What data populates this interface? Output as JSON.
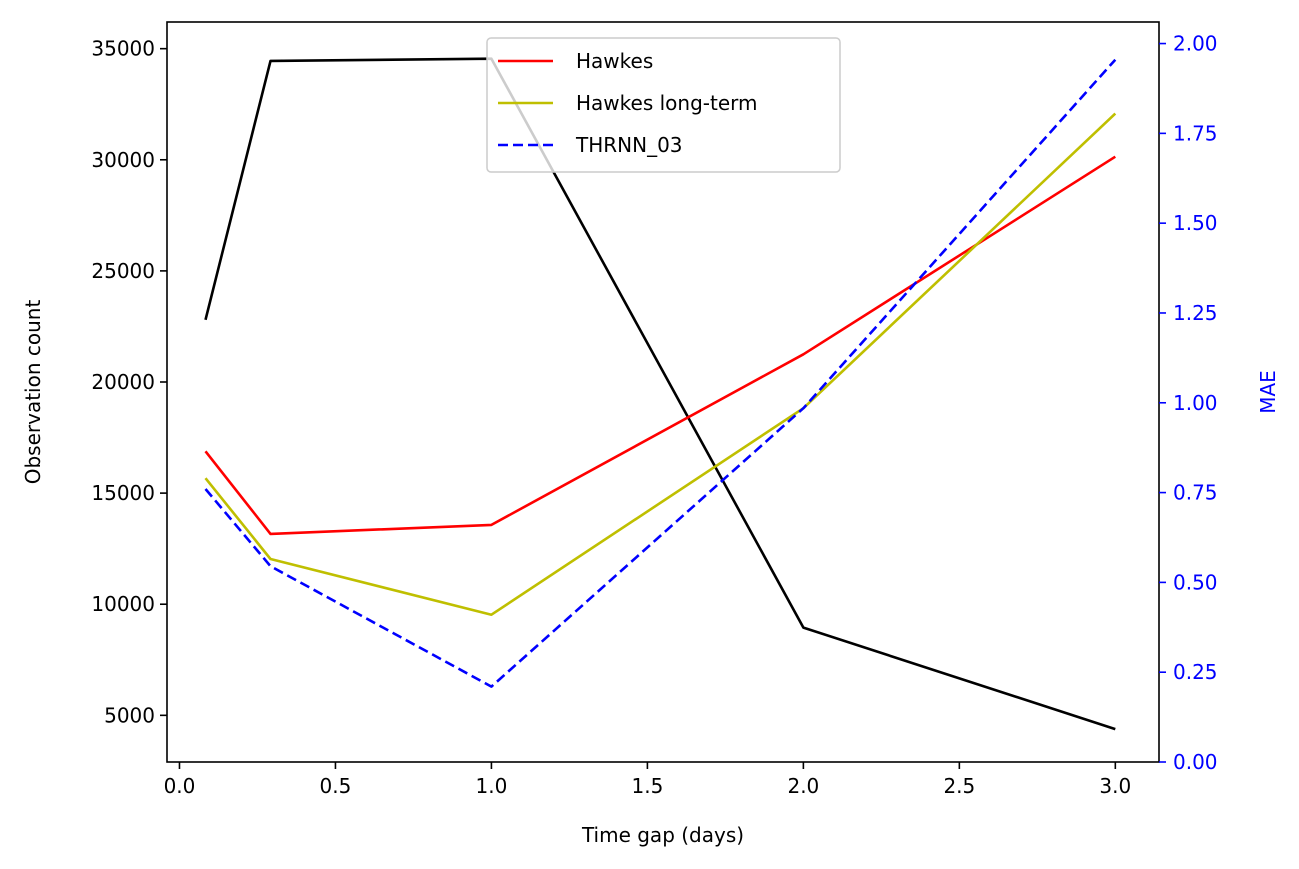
{
  "chart_data": {
    "type": "line",
    "xlabel": "Time gap (days)",
    "ylabel_left": "Observation count",
    "ylabel_right": "MAE",
    "xlim": [
      -0.04,
      3.14
    ],
    "ylim_left": [
      2900,
      36200
    ],
    "ylim_right": [
      0.0,
      2.06
    ],
    "x_ticks": [
      0.0,
      0.5,
      1.0,
      1.5,
      2.0,
      2.5,
      3.0
    ],
    "x_tick_labels": [
      "0.0",
      "0.5",
      "1.0",
      "1.5",
      "2.0",
      "2.5",
      "3.0"
    ],
    "y_left_ticks": [
      5000,
      10000,
      15000,
      20000,
      25000,
      30000,
      35000
    ],
    "y_left_tick_labels": [
      "5000",
      "10000",
      "15000",
      "20000",
      "25000",
      "30000",
      "35000"
    ],
    "y_right_ticks": [
      0.0,
      0.25,
      0.5,
      0.75,
      1.0,
      1.25,
      1.5,
      1.75,
      2.0
    ],
    "y_right_tick_labels": [
      "0.00",
      "0.25",
      "0.50",
      "0.75",
      "1.00",
      "1.25",
      "1.50",
      "1.75",
      "2.00"
    ],
    "right_axis_color": "#0000ff",
    "x": [
      0.0833,
      0.2917,
      1.0,
      2.0,
      3.0
    ],
    "observation_count": {
      "color": "#000000",
      "axis": "left",
      "values": [
        22800,
        34450,
        34550,
        8950,
        4380
      ]
    },
    "series": [
      {
        "name": "Hawkes",
        "axis": "right",
        "color": "#ff0000",
        "dash": "solid",
        "values": [
          0.865,
          0.635,
          0.66,
          1.135,
          1.685
        ]
      },
      {
        "name": "Hawkes long-term",
        "axis": "right",
        "color": "#bfbf00",
        "dash": "solid",
        "values": [
          0.79,
          0.565,
          0.41,
          0.985,
          1.805
        ]
      },
      {
        "name": "THRNN_03",
        "axis": "right",
        "color": "#0000ff",
        "dash": "dashed",
        "values": [
          0.76,
          0.545,
          0.21,
          0.985,
          1.955
        ]
      }
    ],
    "legend_position": "top-center",
    "grid": false
  }
}
